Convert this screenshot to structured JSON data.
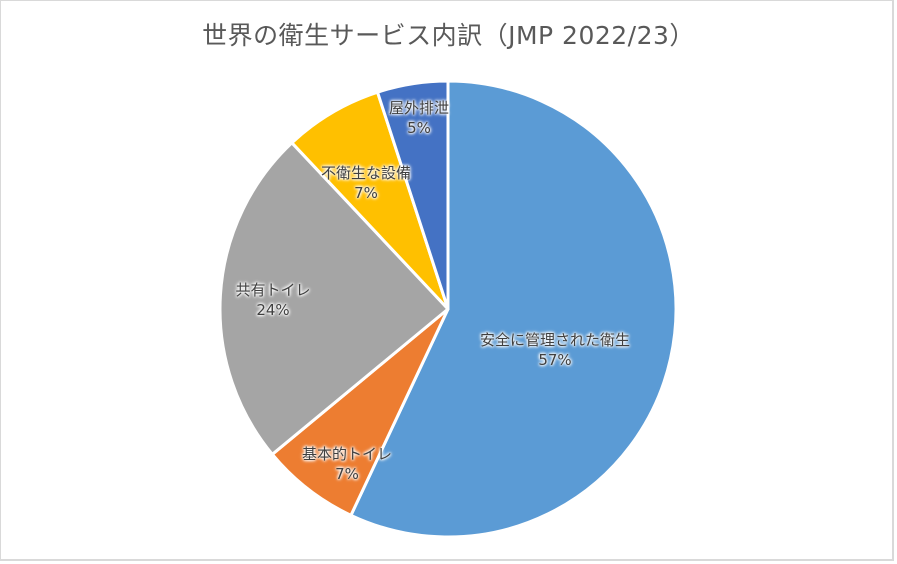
{
  "chart_data": {
    "type": "pie",
    "title": "世界の衛生サービス内訳（JMP 2022/23）",
    "start_angle_deg": 0,
    "direction": "clockwise",
    "slices": [
      {
        "label": "安全に管理された衛生",
        "value": 57,
        "value_label": "57%",
        "color": "#5b9bd5"
      },
      {
        "label": "基本的トイレ",
        "value": 7,
        "value_label": "7%",
        "color": "#ed7d31"
      },
      {
        "label": "共有トイレ",
        "value": 24,
        "value_label": "24%",
        "color": "#a5a5a5"
      },
      {
        "label": "不衛生な設備",
        "value": 7,
        "value_label": "7%",
        "color": "#ffc000"
      },
      {
        "label": "屋外排泄",
        "value": 5,
        "value_label": "5%",
        "color": "#4472c4"
      }
    ],
    "legend": "none",
    "data_labels": "category name and percentage inside slices"
  },
  "labels": [
    {
      "name": "安全に管理された衛生",
      "pct": "57%"
    },
    {
      "name": "基本的トイレ",
      "pct": "7%"
    },
    {
      "name": "共有トイレ",
      "pct": "24%"
    },
    {
      "name": "不衛生な設備",
      "pct": "7%"
    },
    {
      "name": "屋外排泄",
      "pct": "5%"
    }
  ]
}
